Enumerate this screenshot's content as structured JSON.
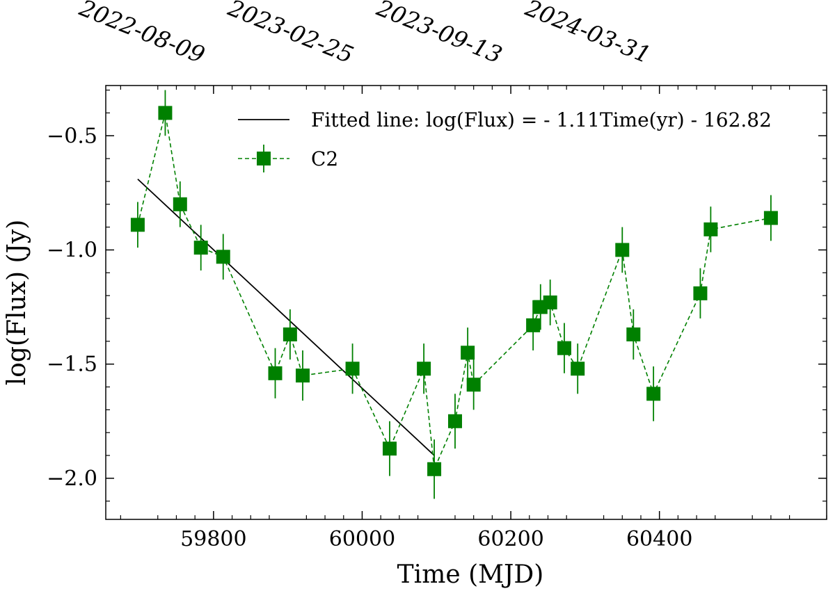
{
  "chart_data": {
    "type": "scatter",
    "title": "",
    "xlabel": "Time (MJD)",
    "ylabel": "log(Flux) (Jy)",
    "xlim": [
      59655,
      60625
    ],
    "ylim": [
      -2.18,
      -0.28
    ],
    "x_ticks": [
      59800,
      60000,
      60200,
      60400
    ],
    "x_tick_labels": [
      "59800",
      "60000",
      "60200",
      "60400"
    ],
    "y_ticks": [
      -0.5,
      -1.0,
      -1.5,
      -2.0
    ],
    "y_tick_labels": [
      "−0.5",
      "−1.0",
      "−1.5",
      "−2.0"
    ],
    "top_axis_ticks": [
      59800,
      60000,
      60200,
      60400
    ],
    "top_axis_labels": [
      "2022-08-09",
      "2023-02-25",
      "2023-09-13",
      "2024-03-31"
    ],
    "grid": false,
    "legend_position": "top-right",
    "series": [
      {
        "name": "C2",
        "style": "dashed-line-square-markers",
        "color": "#008000",
        "x": [
          59698,
          59735,
          59755,
          59783,
          59813,
          59883,
          59903,
          59920,
          59987,
          60037,
          60083,
          60097,
          60125,
          60142,
          60150,
          60230,
          60240,
          60253,
          60272,
          60290,
          60350,
          60365,
          60392,
          60455,
          60469,
          60550
        ],
        "y": [
          -0.89,
          -0.4,
          -0.8,
          -0.99,
          -1.03,
          -1.54,
          -1.37,
          -1.55,
          -1.52,
          -1.87,
          -1.52,
          -1.96,
          -1.75,
          -1.45,
          -1.59,
          -1.33,
          -1.25,
          -1.23,
          -1.43,
          -1.52,
          -1.0,
          -1.37,
          -1.63,
          -1.19,
          -0.91,
          -0.86
        ],
        "yerr": [
          0.1,
          0.1,
          0.1,
          0.1,
          0.1,
          0.11,
          0.11,
          0.11,
          0.11,
          0.12,
          0.11,
          0.13,
          0.12,
          0.11,
          0.11,
          0.11,
          0.1,
          0.1,
          0.11,
          0.11,
          0.1,
          0.11,
          0.12,
          0.11,
          0.1,
          0.1
        ]
      },
      {
        "name": "Fitted line: log(Flux) = - 1.11Time(yr) - 162.82",
        "style": "solid-line",
        "color": "#000000",
        "x": [
          59698,
          60097
        ],
        "y": [
          -0.69,
          -1.9
        ]
      }
    ]
  }
}
